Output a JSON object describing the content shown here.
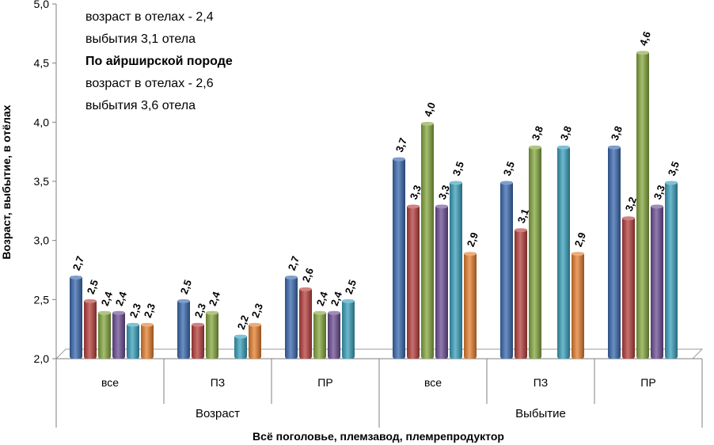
{
  "chart_data": {
    "type": "bar",
    "title": "",
    "ylabel": "Возраст, выбытие,  в отёлах",
    "xlabel": "Всё поголовье, племзавод, племрепродуктор",
    "ylim": [
      2.0,
      5.0
    ],
    "yticks": [
      "2,0",
      "2,5",
      "3,0",
      "3,5",
      "4,0",
      "4,5",
      "5,0"
    ],
    "grid": false,
    "groups": [
      {
        "label": "Возраст",
        "categories": [
          "все",
          "ПЗ",
          "ПР"
        ]
      },
      {
        "label": "Выбытие",
        "categories": [
          "все",
          "ПЗ",
          "ПР"
        ]
      }
    ],
    "categories": [
      "все",
      "ПЗ",
      "ПР",
      "все",
      "ПЗ",
      "ПР"
    ],
    "series": [
      {
        "color": "#3a6ab0",
        "values": [
          2.7,
          2.5,
          2.7,
          3.7,
          3.5,
          3.8
        ],
        "labels": [
          "2,7",
          "2,5",
          "2,7",
          "3,7",
          "3,5",
          "3,8"
        ]
      },
      {
        "color": "#b7403d",
        "values": [
          2.5,
          2.3,
          2.6,
          3.3,
          3.1,
          3.2
        ],
        "labels": [
          "2,5",
          "2,3",
          "2,6",
          "3,3",
          "3,1",
          "3,2"
        ]
      },
      {
        "color": "#86a83f",
        "values": [
          2.4,
          2.4,
          2.4,
          4.0,
          3.8,
          4.6
        ],
        "labels": [
          "2,4",
          "2,4",
          "2,4",
          "4,0",
          "3,8",
          "4,6"
        ]
      },
      {
        "color": "#6c4e95",
        "values": [
          2.4,
          null,
          2.4,
          3.3,
          null,
          3.3
        ],
        "labels": [
          "2,4",
          "",
          "2,4",
          "3,3",
          "",
          "3,3"
        ]
      },
      {
        "color": "#3aa1bd",
        "values": [
          2.3,
          2.2,
          2.5,
          3.5,
          3.8,
          3.5
        ],
        "labels": [
          "2,3",
          "2,2",
          "2,5",
          "3,5",
          "3,8",
          "3,5"
        ]
      },
      {
        "color": "#e6802f",
        "values": [
          2.3,
          2.3,
          null,
          2.9,
          2.9,
          null
        ],
        "labels": [
          "2,3",
          "2,3",
          "",
          "2,9",
          "2,9",
          ""
        ]
      }
    ]
  },
  "annotation": {
    "line1": " возраст в отелах - 2,4",
    "line2": "выбытия 3,1 отела",
    "line3": "По айрширской породе",
    "line4": "возраст в отелах - 2,6",
    "line5": "выбытия 3,6 отела"
  }
}
